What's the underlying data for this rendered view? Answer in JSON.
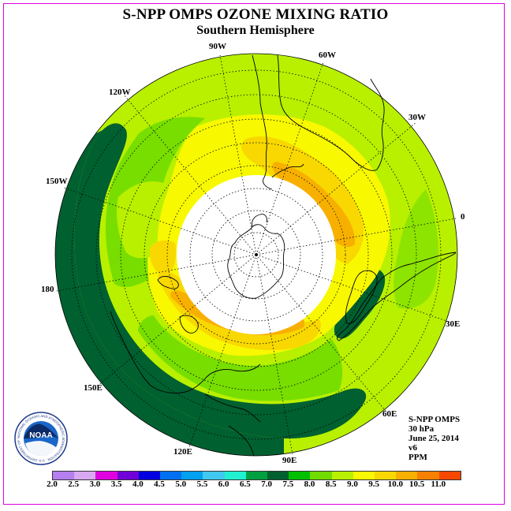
{
  "title": "S-NPP OMPS OZONE MIXING RATIO",
  "subtitle": "Southern Hemisphere",
  "longitude_labels": {
    "90W": "90W",
    "60W": "60W",
    "120W": "120W",
    "30W": "30W",
    "150W": "150W",
    "0": "0",
    "180": "180",
    "30E": "30E",
    "150E": "150E",
    "60E": "60E",
    "120E": "120E",
    "90E": "90E"
  },
  "info": {
    "instrument": "S-NPP OMPS",
    "level": "30 hPa",
    "date": "June 25, 2014",
    "version": "v6",
    "units": "PPM"
  },
  "logo": {
    "text": "NOAA",
    "ring_text": "NATIONAL OCEANIC AND ATMOSPHERIC ADMINISTRATION · U.S. DEPARTMENT OF COMMERCE"
  },
  "colorbar": {
    "colors": [
      "#b57ff0",
      "#d8a8f0",
      "#e000e0",
      "#7000d8",
      "#0000e0",
      "#0070f0",
      "#00a0f0",
      "#40c8f0",
      "#20f0d0",
      "#00a040",
      "#006030",
      "#00c000",
      "#70dc00",
      "#b8f000",
      "#f8f800",
      "#f8d800",
      "#f8b000",
      "#f88000",
      "#f84800",
      "#e00000",
      "#a04020"
    ],
    "ticks": [
      "2.0",
      "2.5",
      "3.0",
      "3.5",
      "4.0",
      "4.5",
      "5.0",
      "5.5",
      "6.0",
      "6.5",
      "7.0",
      "7.5",
      "8.0",
      "8.5",
      "9.0",
      "9.5",
      "10.0",
      "10.5",
      "11.0"
    ]
  },
  "map_colors": {
    "dark_green": "#006030",
    "green": "#70dc00",
    "light_green": "#b8f000",
    "yellow": "#f8f800",
    "orange_yellow": "#f8d800",
    "orange": "#f8b000",
    "no_data": "#ffffff"
  }
}
